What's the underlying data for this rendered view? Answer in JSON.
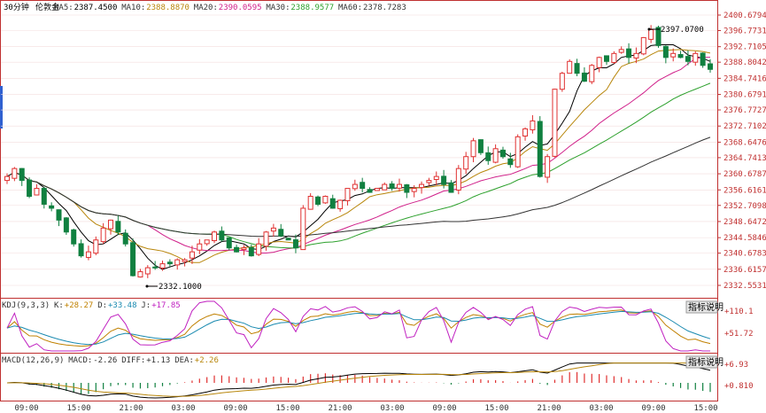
{
  "colors": {
    "up": "#e03030",
    "down": "#108040",
    "ma5": "#000000",
    "ma10": "#b8860b",
    "ma20": "#d0208a",
    "ma30": "#2ca02c",
    "ma60": "#333333",
    "grid": "#f0b0b0",
    "axis": "#c03030"
  },
  "main": {
    "period": "30分钟",
    "symbol": "伦敦金",
    "ma_legend": [
      {
        "label": "MA5:",
        "value": "2387.4500",
        "color": "#000000"
      },
      {
        "label": "MA10:",
        "value": "2388.8870",
        "color": "#b8860b"
      },
      {
        "label": "MA20:",
        "value": "2390.0595",
        "color": "#d0208a"
      },
      {
        "label": "MA30:",
        "value": "2388.9577",
        "color": "#2ca02c"
      },
      {
        "label": "MA60:",
        "value": "2378.7283",
        "color": "#333333"
      }
    ],
    "y_ticks": [
      "2400.6794",
      "2396.7731",
      "2392.7105",
      "2388.8042",
      "2384.7416",
      "2380.6791",
      "2376.7727",
      "2372.7102",
      "2368.6476",
      "2364.7413",
      "2360.6787",
      "2356.6161",
      "2352.7098",
      "2348.6472",
      "2344.5846",
      "2340.6783",
      "2336.6157",
      "2332.5531"
    ],
    "high_label": "2397.0700",
    "low_label": "2332.1000"
  },
  "kdj": {
    "legend": [
      {
        "label": "KDJ(9,3,3)",
        "value": "",
        "color": "#333333"
      },
      {
        "label": "K:",
        "value": "+28.27",
        "color": "#c08000"
      },
      {
        "label": "D:",
        "value": "+33.48",
        "color": "#1a8ab0"
      },
      {
        "label": "J:",
        "value": "+17.85",
        "color": "#c020c0"
      }
    ],
    "y_ticks": [
      "+110.1",
      "+51.72"
    ],
    "button": "指标说明"
  },
  "macd": {
    "legend": [
      {
        "label": "MACD(12,26,9)",
        "value": "",
        "color": "#333333"
      },
      {
        "label": "MACD:",
        "value": "-2.26",
        "color": "#333333"
      },
      {
        "label": "DIFF:",
        "value": "+1.13",
        "color": "#333333"
      },
      {
        "label": "DEA:",
        "value": "+2.26",
        "color": "#b8860b"
      }
    ],
    "y_ticks": [
      "+6.93",
      "+0.810"
    ],
    "button": "指标说明"
  },
  "x_ticks": [
    "09:00",
    "15:00",
    "21:00",
    "03:00",
    "09:00",
    "15:00",
    "21:00",
    "03:00",
    "09:00",
    "15:00",
    "21:00",
    "03:00",
    "09:00",
    "15:00"
  ],
  "chart_data": {
    "type": "candlestick",
    "period": "30分钟",
    "symbol": "伦敦金",
    "ylim": [
      2332.5531,
      2400.6794
    ],
    "series": [
      {
        "name": "MA5",
        "last": 2387.45
      },
      {
        "name": "MA10",
        "last": 2388.887
      },
      {
        "name": "MA20",
        "last": 2390.0595
      },
      {
        "name": "MA30",
        "last": 2388.9577
      },
      {
        "name": "MA60",
        "last": 2378.7283
      }
    ],
    "close_path": [
      2360,
      2362,
      2359,
      2355,
      2357,
      2353,
      2352,
      2349,
      2346,
      2343,
      2340,
      2341,
      2344,
      2347,
      2349,
      2346,
      2343,
      2335,
      2336,
      2337,
      2337,
      2338,
      2338,
      2339,
      2339,
      2341,
      2343,
      2344,
      2346,
      2344,
      2342,
      2341,
      2342,
      2340,
      2343,
      2346,
      2347,
      2345,
      2344,
      2342,
      2352,
      2355,
      2353,
      2355,
      2352,
      2354,
      2357,
      2358,
      2357,
      2356,
      2357,
      2358,
      2357,
      2358,
      2356,
      2357,
      2358,
      2359,
      2360,
      2358,
      2356,
      2362,
      2365,
      2369,
      2366,
      2364,
      2367,
      2365,
      2363,
      2370,
      2372,
      2374,
      2360,
      2365,
      2382,
      2386,
      2389,
      2386,
      2384,
      2388,
      2390,
      2389,
      2391,
      2392,
      2390,
      2391,
      2395,
      2397,
      2393,
      2390,
      2391,
      2390,
      2389,
      2391,
      2388,
      2387
    ],
    "annotations": [
      {
        "label": "2397.0700",
        "type": "high",
        "value": 2397.07
      },
      {
        "label": "2332.1000",
        "type": "low",
        "value": 2332.1
      }
    ],
    "kdj": {
      "name": "KDJ(9,3,3)",
      "K": 28.27,
      "D": 33.48,
      "J": 17.85,
      "ylim_label": [
        51.72,
        110.1
      ]
    },
    "macd": {
      "name": "MACD(12,26,9)",
      "MACD": -2.26,
      "DIFF": 1.13,
      "DEA": 2.26
    }
  }
}
